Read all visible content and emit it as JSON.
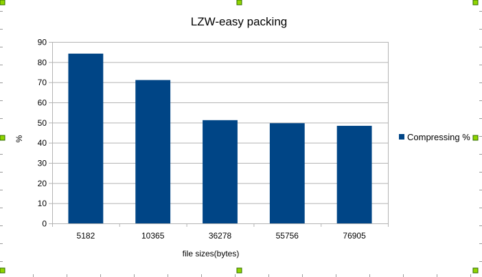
{
  "chart_data": {
    "type": "bar",
    "title": "LZW-easy packing",
    "xlabel": "file sizes(bytes)",
    "ylabel": "%",
    "categories": [
      "5182",
      "10365",
      "36278",
      "55756",
      "76905"
    ],
    "series": [
      {
        "name": "Compressing %",
        "values": [
          84.2,
          71.1,
          51.2,
          49.7,
          48.4
        ],
        "color": "#004586"
      }
    ],
    "ylim": [
      0,
      90
    ],
    "yticks": [
      "0",
      "10",
      "20",
      "30",
      "40",
      "50",
      "60",
      "70",
      "80",
      "90"
    ],
    "grid": true,
    "legend": "right"
  },
  "colors": {
    "bar": "#004586",
    "grid": "#b3b3b3",
    "handle_fill": "#8fd400",
    "handle_border": "#2f6a00"
  }
}
